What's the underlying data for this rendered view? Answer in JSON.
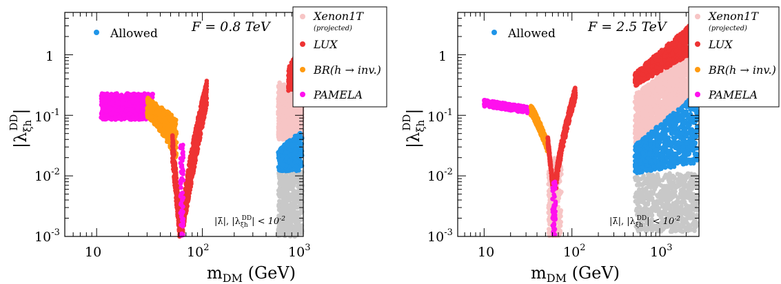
{
  "colors": {
    "allowed": "#1f95e8",
    "xenon": "#f7c5c5",
    "lux": "#ee3333",
    "br_inv": "#ff9a10",
    "pamela": "#ff10ee",
    "excluded": "#c8c8c8"
  },
  "chart_data": [
    {
      "type": "scatter",
      "annotation": "F = 0.8 TeV",
      "xscale": "log",
      "yscale": "log",
      "xlim": [
        5,
        900
      ],
      "ylim": [
        0.001,
        5
      ],
      "xticks": [
        "10",
        "10^2",
        "10^3"
      ],
      "yticks": [
        "10^-3",
        "10^-2",
        "10^-1",
        "1"
      ],
      "xlabel": "m_DM (GeV)",
      "ylabel": "|λ_ξh^DD|",
      "inset_label": "|λ̄|, |λ_ξh^DD| < 10^-2",
      "allowed_label": "Allowed",
      "legend_position": "top-right",
      "legend": [
        "Xenon1T",
        "(projected)",
        "LUX",
        "BR(h → inv.)",
        "PAMELA"
      ],
      "series": [
        {
          "name": "PAMELA",
          "mass_range_GeV": [
            11,
            33
          ],
          "coupling_range": [
            0.08,
            0.24
          ]
        },
        {
          "name": "BR(h → inv.)",
          "mass_range_GeV": [
            33,
            55
          ],
          "coupling_range": [
            0.02,
            0.2
          ]
        },
        {
          "name": "LUX",
          "mass_range_GeV": [
            52,
            110
          ],
          "coupling_range": [
            0.001,
            0.38
          ]
        },
        {
          "name": "Xenon1T",
          "mass_range_GeV": [
            500,
            900
          ],
          "coupling_range": [
            0.05,
            0.3
          ]
        },
        {
          "name": "Allowed",
          "mass_range_GeV": [
            500,
            900
          ],
          "coupling_range": [
            0.012,
            0.055
          ]
        }
      ]
    },
    {
      "type": "scatter",
      "annotation": "F = 2.5 TeV",
      "xscale": "log",
      "yscale": "log",
      "xlim": [
        5,
        2800
      ],
      "ylim": [
        0.001,
        5
      ],
      "xticks": [
        "10",
        "10^2",
        "10^3"
      ],
      "yticks": [
        "10^-3",
        "10^-2",
        "10^-1",
        "1"
      ],
      "xlabel": "m_DM (GeV)",
      "ylabel": "|λ_ξh^DD|",
      "inset_label": "|λ̄|, |λ_ξh^DD| < 10^-2",
      "allowed_label": "Allowed",
      "legend_position": "top-right",
      "legend": [
        "Xenon1T",
        "(projected)",
        "LUX",
        "BR(h → inv.)",
        "PAMELA"
      ],
      "series": [
        {
          "name": "PAMELA",
          "mass_range_GeV": [
            10,
            35
          ],
          "coupling_range": [
            0.1,
            0.18
          ]
        },
        {
          "name": "BR(h → inv.)",
          "mass_range_GeV": [
            35,
            53
          ],
          "coupling_range": [
            0.03,
            0.12
          ]
        },
        {
          "name": "LUX",
          "mass_range_GeV": [
            55,
            110
          ],
          "coupling_range": [
            0.008,
            0.25
          ]
        },
        {
          "name": "Xenon1T",
          "mass_range_GeV": [
            500,
            2800
          ],
          "coupling_range": [
            0.03,
            1.5
          ]
        },
        {
          "name": "Allowed",
          "mass_range_GeV": [
            500,
            2800
          ],
          "coupling_range": [
            0.01,
            0.25
          ]
        }
      ]
    }
  ]
}
